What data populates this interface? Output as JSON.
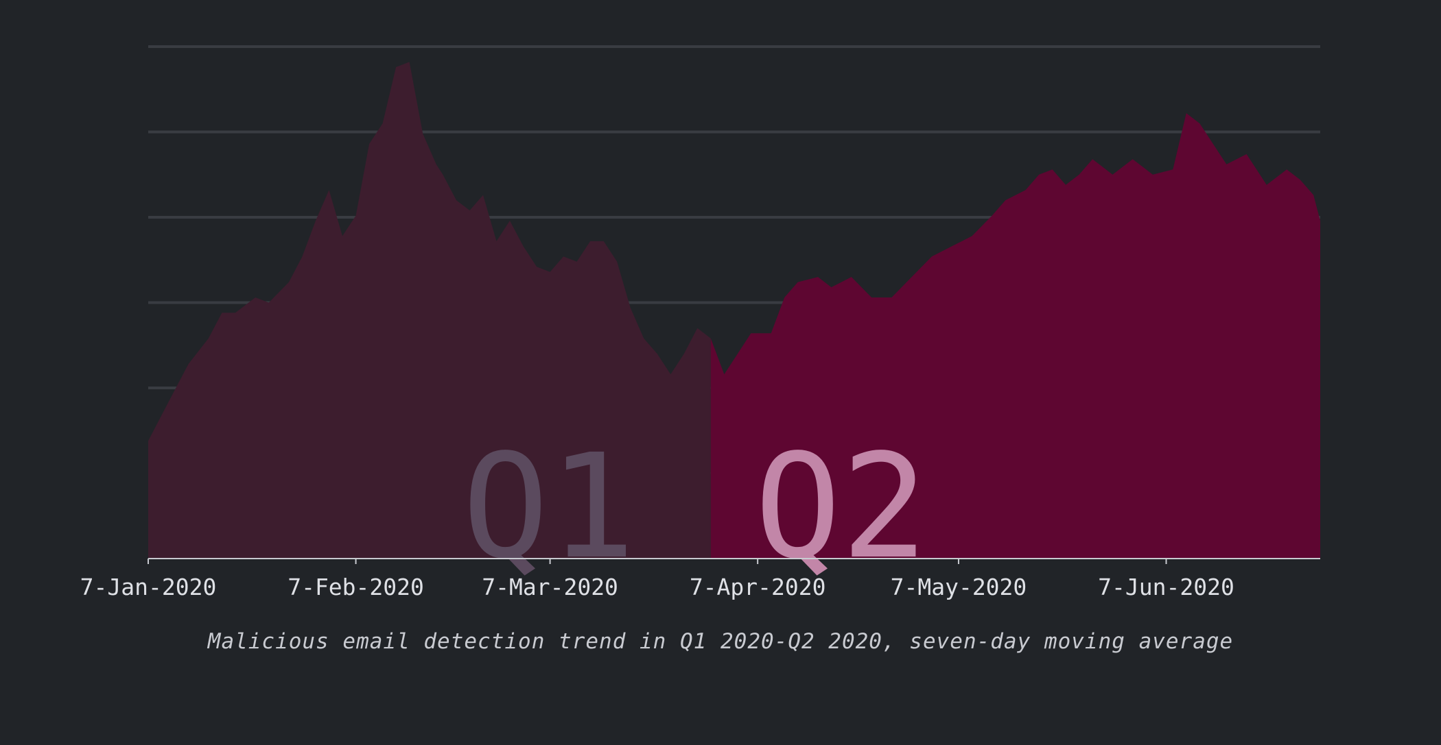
{
  "chart_data": {
    "type": "area",
    "title": "",
    "caption": "Malicious email detection trend in Q1 2020-Q2 2020, seven-day moving average",
    "xlabel": "",
    "ylabel": "",
    "x_start": "2020-01-07",
    "x_end": "2020-06-30",
    "y_scale": "relative (no y-axis values shown)",
    "ylim": [
      0,
      100
    ],
    "grid": "horizontal",
    "x_ticks": [
      "7-Jan-2020",
      "7-Feb-2020",
      "7-Mar-2020",
      "7-Apr-2020",
      "7-May-2020",
      "7-Jun-2020"
    ],
    "x_tick_dates": [
      "2020-01-07",
      "2020-02-07",
      "2020-03-07",
      "2020-04-07",
      "2020-05-07",
      "2020-06-07"
    ],
    "regions": [
      {
        "label": "Q1",
        "start": "2020-01-07",
        "end": "2020-03-31",
        "fill": "#3d1d2e",
        "label_color": "#5b4a5e"
      },
      {
        "label": "Q2",
        "start": "2020-03-31",
        "end": "2020-06-30",
        "fill": "#5e0631",
        "label_color": "#c286a8"
      }
    ],
    "series": [
      {
        "x": [
          "2020-01-07",
          "2020-01-09",
          "2020-01-11",
          "2020-01-13",
          "2020-01-16",
          "2020-01-18",
          "2020-01-20",
          "2020-01-23",
          "2020-01-25",
          "2020-01-28",
          "2020-01-30",
          "2020-02-01",
          "2020-02-03",
          "2020-02-05",
          "2020-02-07",
          "2020-02-09",
          "2020-02-11",
          "2020-02-13",
          "2020-02-15",
          "2020-02-17",
          "2020-02-19",
          "2020-02-20",
          "2020-02-22",
          "2020-02-24",
          "2020-02-26",
          "2020-02-28",
          "2020-03-01",
          "2020-03-03",
          "2020-03-05",
          "2020-03-07",
          "2020-03-09",
          "2020-03-11",
          "2020-03-13",
          "2020-03-15",
          "2020-03-17",
          "2020-03-19",
          "2020-03-21",
          "2020-03-23",
          "2020-03-25",
          "2020-03-27",
          "2020-03-29",
          "2020-03-31",
          "2020-04-02",
          "2020-04-04",
          "2020-04-06",
          "2020-04-09",
          "2020-04-11",
          "2020-04-13",
          "2020-04-16",
          "2020-04-18",
          "2020-04-21",
          "2020-04-24",
          "2020-04-27",
          "2020-04-30",
          "2020-05-03",
          "2020-05-06",
          "2020-05-09",
          "2020-05-12",
          "2020-05-14",
          "2020-05-17",
          "2020-05-19",
          "2020-05-21",
          "2020-05-23",
          "2020-05-25",
          "2020-05-27",
          "2020-05-30",
          "2020-06-02",
          "2020-06-05",
          "2020-06-08",
          "2020-06-10",
          "2020-06-12",
          "2020-06-14",
          "2020-06-16",
          "2020-06-19",
          "2020-06-22",
          "2020-06-25",
          "2020-06-27",
          "2020-06-29",
          "2020-06-30"
        ],
        "y": [
          23,
          28,
          33,
          38,
          43,
          48,
          48,
          51,
          50,
          54,
          59,
          66,
          72,
          63,
          67,
          81,
          85,
          96,
          97,
          83,
          77,
          75,
          70,
          68,
          71,
          62,
          66,
          61,
          57,
          56,
          59,
          58,
          62,
          62,
          58,
          49,
          43,
          40,
          36,
          40,
          45,
          43,
          36,
          40,
          44,
          44,
          51,
          54,
          55,
          53,
          55,
          51,
          51,
          55,
          59,
          61,
          63,
          67,
          70,
          72,
          75,
          76,
          73,
          75,
          78,
          75,
          78,
          75,
          76,
          87,
          85,
          81,
          77,
          79,
          73,
          76,
          74,
          71,
          66
        ]
      }
    ]
  }
}
